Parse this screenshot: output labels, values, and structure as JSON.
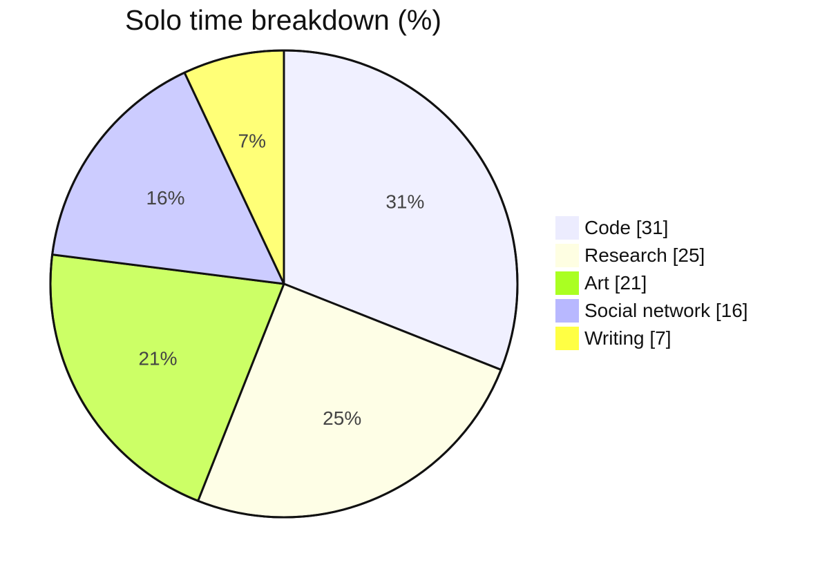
{
  "chart_data": {
    "type": "pie",
    "title": "Solo time breakdown (%)",
    "slices": [
      {
        "label": "Code",
        "value": 31,
        "display": "31%",
        "legend": "Code [31]",
        "color": "#f0f0ff",
        "swatch": "#ececfe"
      },
      {
        "label": "Research",
        "value": 25,
        "display": "25%",
        "legend": "Research [25]",
        "color": "#fefee6",
        "swatch": "#fefee2"
      },
      {
        "label": "Art",
        "value": 21,
        "display": "21%",
        "legend": "Art [21]",
        "color": "#ccff66",
        "swatch": "#aaff22"
      },
      {
        "label": "Social network",
        "value": 16,
        "display": "16%",
        "legend": "Social network [16]",
        "color": "#ccccff",
        "swatch": "#b8b8ff"
      },
      {
        "label": "Writing",
        "value": 7,
        "display": "7%",
        "legend": "Writing [7]",
        "color": "#ffff77",
        "swatch": "#ffff44"
      }
    ],
    "start_angle_deg": 0,
    "direction": "clockwise",
    "legend_position": "right"
  }
}
